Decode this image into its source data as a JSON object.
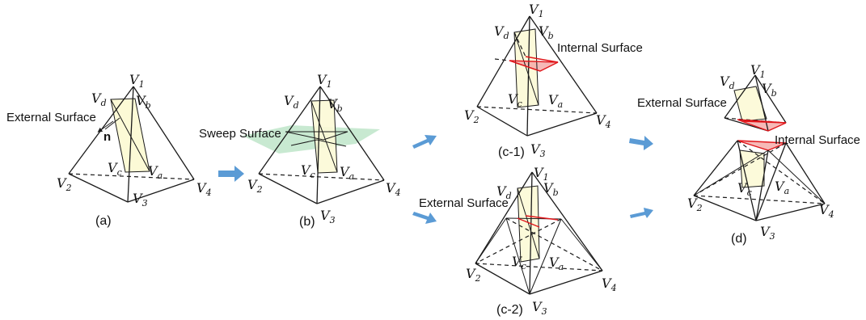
{
  "colors": {
    "arrow": "#5b9bd5",
    "surface": "#fcfad6",
    "sweep": "#b6e2c2",
    "internal": "#f4a7a5",
    "red_edge": "#e0161b"
  },
  "vertex_names": {
    "v1": "V",
    "v1_sub": "1",
    "v2": "V",
    "v2_sub": "2",
    "v3": "V",
    "v3_sub": "3",
    "v4": "V",
    "v4_sub": "4",
    "va": "V",
    "va_sub": "a",
    "vb": "V",
    "vb_sub": "b",
    "vc": "V",
    "vc_sub": "c",
    "vd": "V",
    "vd_sub": "d"
  },
  "annotations": {
    "external_surface": "External Surface",
    "sweep_surface": "Sweep Surface",
    "internal_surface": "Internal Surface",
    "normal": "n"
  },
  "panel_labels": {
    "a": "(a)",
    "b": "(b)",
    "c1": "(c-1)",
    "c2": "(c-2)",
    "d": "(d)"
  }
}
